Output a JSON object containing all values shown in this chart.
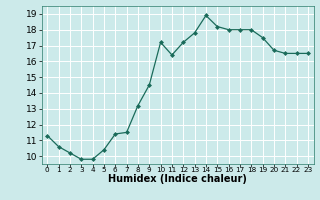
{
  "x": [
    0,
    1,
    2,
    3,
    4,
    5,
    6,
    7,
    8,
    9,
    10,
    11,
    12,
    13,
    14,
    15,
    16,
    17,
    18,
    19,
    20,
    21,
    22,
    23
  ],
  "y": [
    11.3,
    10.6,
    10.2,
    9.8,
    9.8,
    10.4,
    11.4,
    11.5,
    13.2,
    14.5,
    17.2,
    16.4,
    17.2,
    17.8,
    18.9,
    18.2,
    18.0,
    18.0,
    18.0,
    17.5,
    16.7,
    16.5,
    16.5,
    16.5
  ],
  "line_color": "#1a6b5a",
  "marker": "D",
  "marker_size": 2,
  "bg_color": "#cceaea",
  "grid_color": "#ffffff",
  "xlabel": "Humidex (Indice chaleur)",
  "xlabel_fontsize": 7,
  "tick_fontsize": 6.5,
  "ylim": [
    9.5,
    19.5
  ],
  "xlim": [
    -0.5,
    23.5
  ],
  "yticks": [
    10,
    11,
    12,
    13,
    14,
    15,
    16,
    17,
    18,
    19
  ],
  "xticks": [
    0,
    1,
    2,
    3,
    4,
    5,
    6,
    7,
    8,
    9,
    10,
    11,
    12,
    13,
    14,
    15,
    16,
    17,
    18,
    19,
    20,
    21,
    22,
    23
  ],
  "linewidth": 0.9
}
